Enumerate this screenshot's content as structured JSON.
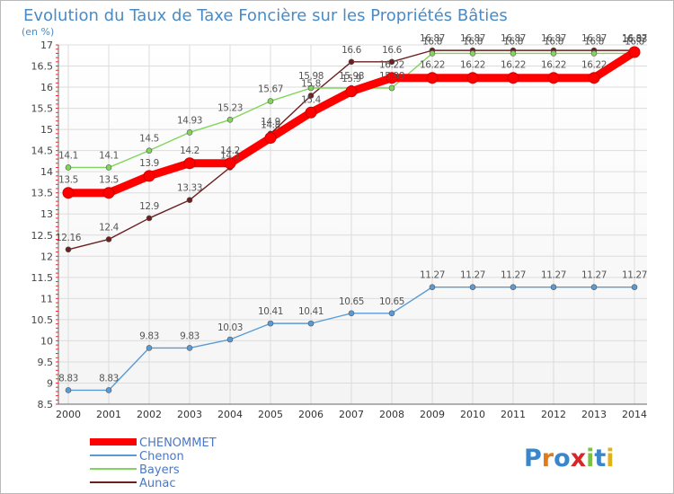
{
  "chart_data": {
    "type": "line",
    "title": "Evolution du Taux de Taxe Foncière sur les Propriétés Bâties",
    "subtitle": "(en %)",
    "xlabel": "",
    "ylabel": "",
    "ylim": [
      8.5,
      17
    ],
    "grid": true,
    "legend_position": "bottom-left",
    "x": [
      "2000",
      "2001",
      "2002",
      "2003",
      "2004",
      "2005",
      "2006",
      "2007",
      "2008",
      "2009",
      "2010",
      "2011",
      "2012",
      "2013",
      "2014"
    ],
    "y_ticks": [
      "8.5",
      "9",
      "9.5",
      "10",
      "10.5",
      "11",
      "11.5",
      "12",
      "12.5",
      "13",
      "13.5",
      "14",
      "14.5",
      "15",
      "15.5",
      "16",
      "16.5",
      "17"
    ],
    "series": [
      {
        "name": "Aunac",
        "color": "#6b1f1f",
        "values": [
          12.16,
          12.4,
          12.9,
          13.33,
          14.1,
          14.9,
          15.8,
          16.6,
          16.6,
          16.87,
          16.87,
          16.87,
          16.87,
          16.87,
          16.87
        ],
        "labels": [
          "12.16",
          "12.4",
          "12.9",
          "13.33",
          "14.1",
          "14.9",
          "15.8",
          "16.6",
          "16.6",
          "16.87",
          "16.87",
          "16.87",
          "16.87",
          "16.87",
          "16.87"
        ]
      },
      {
        "name": "Bayers",
        "color": "#7fd65a",
        "values": [
          14.1,
          14.1,
          14.5,
          14.93,
          15.23,
          15.67,
          15.98,
          15.98,
          15.98,
          16.8,
          16.8,
          16.8,
          16.8,
          16.8,
          16.8
        ],
        "labels": [
          "14.1",
          "14.1",
          "14.5",
          "14.93",
          "15.23",
          "15.67",
          "15.98",
          "15.98",
          "15.98",
          "16.8",
          "16.8",
          "16.8",
          "16.8",
          "16.8",
          "16.8"
        ]
      },
      {
        "name": "Chenon",
        "color": "#5b9bd5",
        "values": [
          8.83,
          8.83,
          9.83,
          9.83,
          10.03,
          10.41,
          10.41,
          10.65,
          10.65,
          11.27,
          11.27,
          11.27,
          11.27,
          11.27,
          11.27
        ],
        "labels": [
          "8.83",
          "8.83",
          "9.83",
          "9.83",
          "10.03",
          "10.41",
          "10.41",
          "10.65",
          "10.65",
          "11.27",
          "11.27",
          "11.27",
          "11.27",
          "11.27",
          "11.27"
        ]
      },
      {
        "name": "CHENOMMET",
        "color": "#ff0000",
        "values": [
          13.5,
          13.5,
          13.9,
          14.2,
          14.2,
          14.8,
          15.4,
          15.9,
          16.22,
          16.22,
          16.22,
          16.22,
          16.22,
          16.22,
          16.83
        ],
        "labels": [
          "13.5",
          "13.5",
          "13.9",
          "14.2",
          "14.2",
          "14.8",
          "15.4",
          "15.9",
          "16.22",
          "16.22",
          "16.22",
          "16.22",
          "16.22",
          "16.22",
          "16.83"
        ]
      }
    ],
    "legend": [
      "CHENOMMET",
      "Chenon",
      "Bayers",
      "Aunac"
    ]
  },
  "branding": {
    "logo_text": "Proxiti"
  }
}
